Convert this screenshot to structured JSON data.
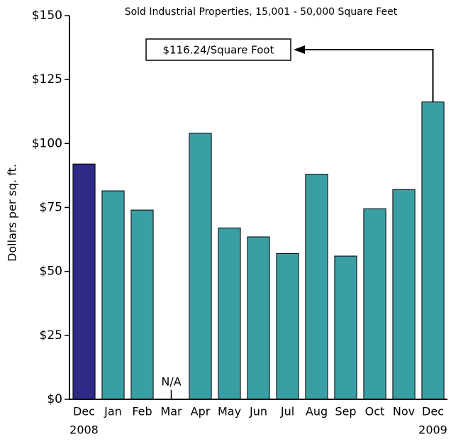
{
  "chart_data": {
    "type": "bar",
    "title": "Sold Industrial Properties, 15,001 - 50,000 Square Feet",
    "y_label": "Dollars per sq. ft.",
    "categories": [
      "Dec",
      "Jan",
      "Feb",
      "Mar",
      "Apr",
      "May",
      "Jun",
      "Jul",
      "Aug",
      "Sep",
      "Oct",
      "Nov",
      "Dec"
    ],
    "x_sublabels": [
      "2008",
      null,
      null,
      null,
      null,
      null,
      null,
      null,
      null,
      null,
      null,
      null,
      "2009"
    ],
    "values": [
      92,
      81.5,
      74,
      null,
      104,
      67,
      63.5,
      57,
      88,
      56,
      74.5,
      82,
      116.24
    ],
    "value_labels": [
      null,
      null,
      null,
      "N/A",
      null,
      null,
      null,
      null,
      null,
      null,
      null,
      null,
      null
    ],
    "colors": [
      "#2e2a86",
      "#3a9ea5",
      "#3a9ea5",
      "#3a9ea5",
      "#3a9ea5",
      "#3a9ea5",
      "#3a9ea5",
      "#3a9ea5",
      "#3a9ea5",
      "#3a9ea5",
      "#3a9ea5",
      "#3a9ea5",
      "#3a9ea5"
    ],
    "annotation": "$116.24/Square Foot",
    "ylim": [
      0,
      150
    ],
    "yticks": [
      {
        "value": 0,
        "label": "$0"
      },
      {
        "value": 25,
        "label": "$25"
      },
      {
        "value": 50,
        "label": "$50"
      },
      {
        "value": 75,
        "label": "$75"
      },
      {
        "value": 100,
        "label": "$100"
      },
      {
        "value": 125,
        "label": "$125"
      },
      {
        "value": 150,
        "label": "$150"
      }
    ]
  }
}
